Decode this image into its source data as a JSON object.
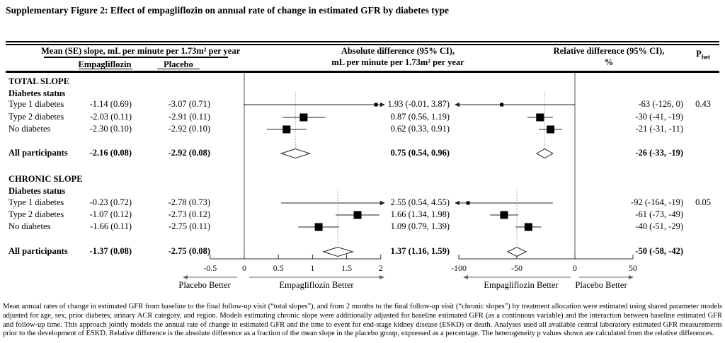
{
  "title": "Supplementary Figure 2: Effect of empagliflozin on annual rate of change in estimated GFR by diabetes type",
  "header": {
    "mean_slope": "Mean (SE) slope, mL per minute per 1.73m² per year",
    "empagliflozin": "Empagliflozin",
    "placebo": "Placebo",
    "abs_line1": "Absolute difference (95% CI),",
    "abs_line2": "mL per minute per 1.73m² per year",
    "rel_line1": "Relative difference (95% CI),",
    "rel_line2": "%",
    "p_base": "P",
    "p_sub": "het"
  },
  "chart_data": {
    "type": "forest",
    "plots": {
      "absolute": {
        "title": "Absolute difference (95% CI), mL per minute per 1.73m² per year",
        "xmin": -0.5,
        "xmax": 2,
        "zero_line": 0,
        "ticks": [
          {
            "v": -0.5,
            "label": "-0.5"
          },
          {
            "v": 0,
            "label": "0"
          },
          {
            "v": 0.5,
            "label": "0.5"
          },
          {
            "v": 1,
            "label": "1"
          },
          {
            "v": 1.5,
            "label": "1.5"
          },
          {
            "v": 2,
            "label": "2"
          }
        ],
        "left_label": "Placebo Better",
        "right_label": "Empagliflozin Better"
      },
      "relative": {
        "title": "Relative difference (95% CI), %",
        "xmin": -100,
        "xmax": 50,
        "zero_line": 0,
        "ticks": [
          {
            "v": -100,
            "label": "-100"
          },
          {
            "v": -50,
            "label": "-50"
          },
          {
            "v": 0,
            "label": "0"
          },
          {
            "v": 50,
            "label": "50"
          }
        ],
        "left_label": "Empagliflozin Better",
        "right_label": "Placebo Better"
      }
    },
    "sections": [
      {
        "name": "TOTAL SLOPE",
        "subheading": "Diabetes status",
        "rows": [
          {
            "label": "Type 1 diabetes",
            "empa": "-1.14 (0.69)",
            "placebo": "-3.07 (0.71)",
            "abs_text": "1.93 (-0.01, 3.87)",
            "rel_text": "-63 (-126, 0)",
            "p": "0.43",
            "abs_est": 1.93,
            "abs_lo": -0.01,
            "abs_hi": 3.87,
            "rel_est": -63,
            "rel_lo": -126,
            "rel_hi": 0,
            "marker": "small"
          },
          {
            "label": "Type 2 diabetes",
            "empa": "-2.03 (0.11)",
            "placebo": "-2.91 (0.11)",
            "abs_text": "0.87 (0.56, 1.19)",
            "rel_text": "-30 (-41, -19)",
            "abs_est": 0.87,
            "abs_lo": 0.56,
            "abs_hi": 1.19,
            "rel_est": -30,
            "rel_lo": -41,
            "rel_hi": -19,
            "marker": "large"
          },
          {
            "label": "No diabetes",
            "empa": "-2.30 (0.10)",
            "placebo": "-2.92 (0.10)",
            "abs_text": "0.62 (0.33, 0.91)",
            "rel_text": "-21 (-31, -11)",
            "abs_est": 0.62,
            "abs_lo": 0.33,
            "abs_hi": 0.91,
            "rel_est": -21,
            "rel_lo": -31,
            "rel_hi": -11,
            "marker": "large"
          }
        ],
        "summary": {
          "label": "All participants",
          "empa": "-2.16 (0.08)",
          "placebo": "-2.92 (0.08)",
          "abs_text": "0.75 (0.54, 0.96)",
          "rel_text": "-26 (-33, -19)",
          "abs_est": 0.75,
          "abs_lo": 0.54,
          "abs_hi": 0.96,
          "rel_est": -26,
          "rel_lo": -33,
          "rel_hi": -19
        }
      },
      {
        "name": "CHRONIC SLOPE",
        "subheading": "Diabetes status",
        "rows": [
          {
            "label": "Type 1 diabetes",
            "empa": "-0.23 (0.72)",
            "placebo": "-2.78 (0.73)",
            "abs_text": "2.55 (0.54, 4.55)",
            "rel_text": "-92 (-164, -19)",
            "p": "0.05",
            "abs_est": 2.55,
            "abs_lo": 0.54,
            "abs_hi": 4.55,
            "rel_est": -92,
            "rel_lo": -164,
            "rel_hi": -19,
            "marker": "small"
          },
          {
            "label": "Type 2 diabetes",
            "empa": "-1.07 (0.12)",
            "placebo": "-2.73 (0.12)",
            "abs_text": "1.66 (1.34, 1.98)",
            "rel_text": "-61 (-73, -49)",
            "abs_est": 1.66,
            "abs_lo": 1.34,
            "abs_hi": 1.98,
            "rel_est": -61,
            "rel_lo": -73,
            "rel_hi": -49,
            "marker": "large"
          },
          {
            "label": "No diabetes",
            "empa": "-1.66 (0.11)",
            "placebo": "-2.75 (0.11)",
            "abs_text": "1.09 (0.79, 1.39)",
            "rel_text": "-40 (-51, -29)",
            "abs_est": 1.09,
            "abs_lo": 0.79,
            "abs_hi": 1.39,
            "rel_est": -40,
            "rel_lo": -51,
            "rel_hi": -29,
            "marker": "large"
          }
        ],
        "summary": {
          "label": "All participants",
          "empa": "-1.37 (0.08)",
          "placebo": "-2.75 (0.08)",
          "abs_text": "1.37 (1.16, 1.59)",
          "rel_text": "-50 (-58, -42)",
          "abs_est": 1.37,
          "abs_lo": 1.16,
          "abs_hi": 1.59,
          "rel_est": -50,
          "rel_lo": -58,
          "rel_hi": -42
        }
      }
    ]
  },
  "footnote": "Mean annual rates of change in estimated GFR from baseline to the final follow-up visit (“total slopes”), and from 2 months to the final follow-up visit (“chronic slopes”) by treatment allocation were estimated using shared parameter models adjusted for age, sex, prior diabetes, urinary ACR category, and region. Models estimating chronic slope were additionally adjusted for baseline estimated GFR (as a continuous variable) and the interaction between baseline estimated GFR and follow-up time. This approach jointly models the annual rate of change in estimated GFR and the time to event for end-stage kidney disease (ESKD) or death. Analyses used all available central laboratory estimated GFR measurements prior to the development of ESKD.  Relative difference is the absolute difference as a fraction of the mean slope in the placebo group, expressed as a percentage. The heterogeneity p values shown are calculated from the relative differences."
}
